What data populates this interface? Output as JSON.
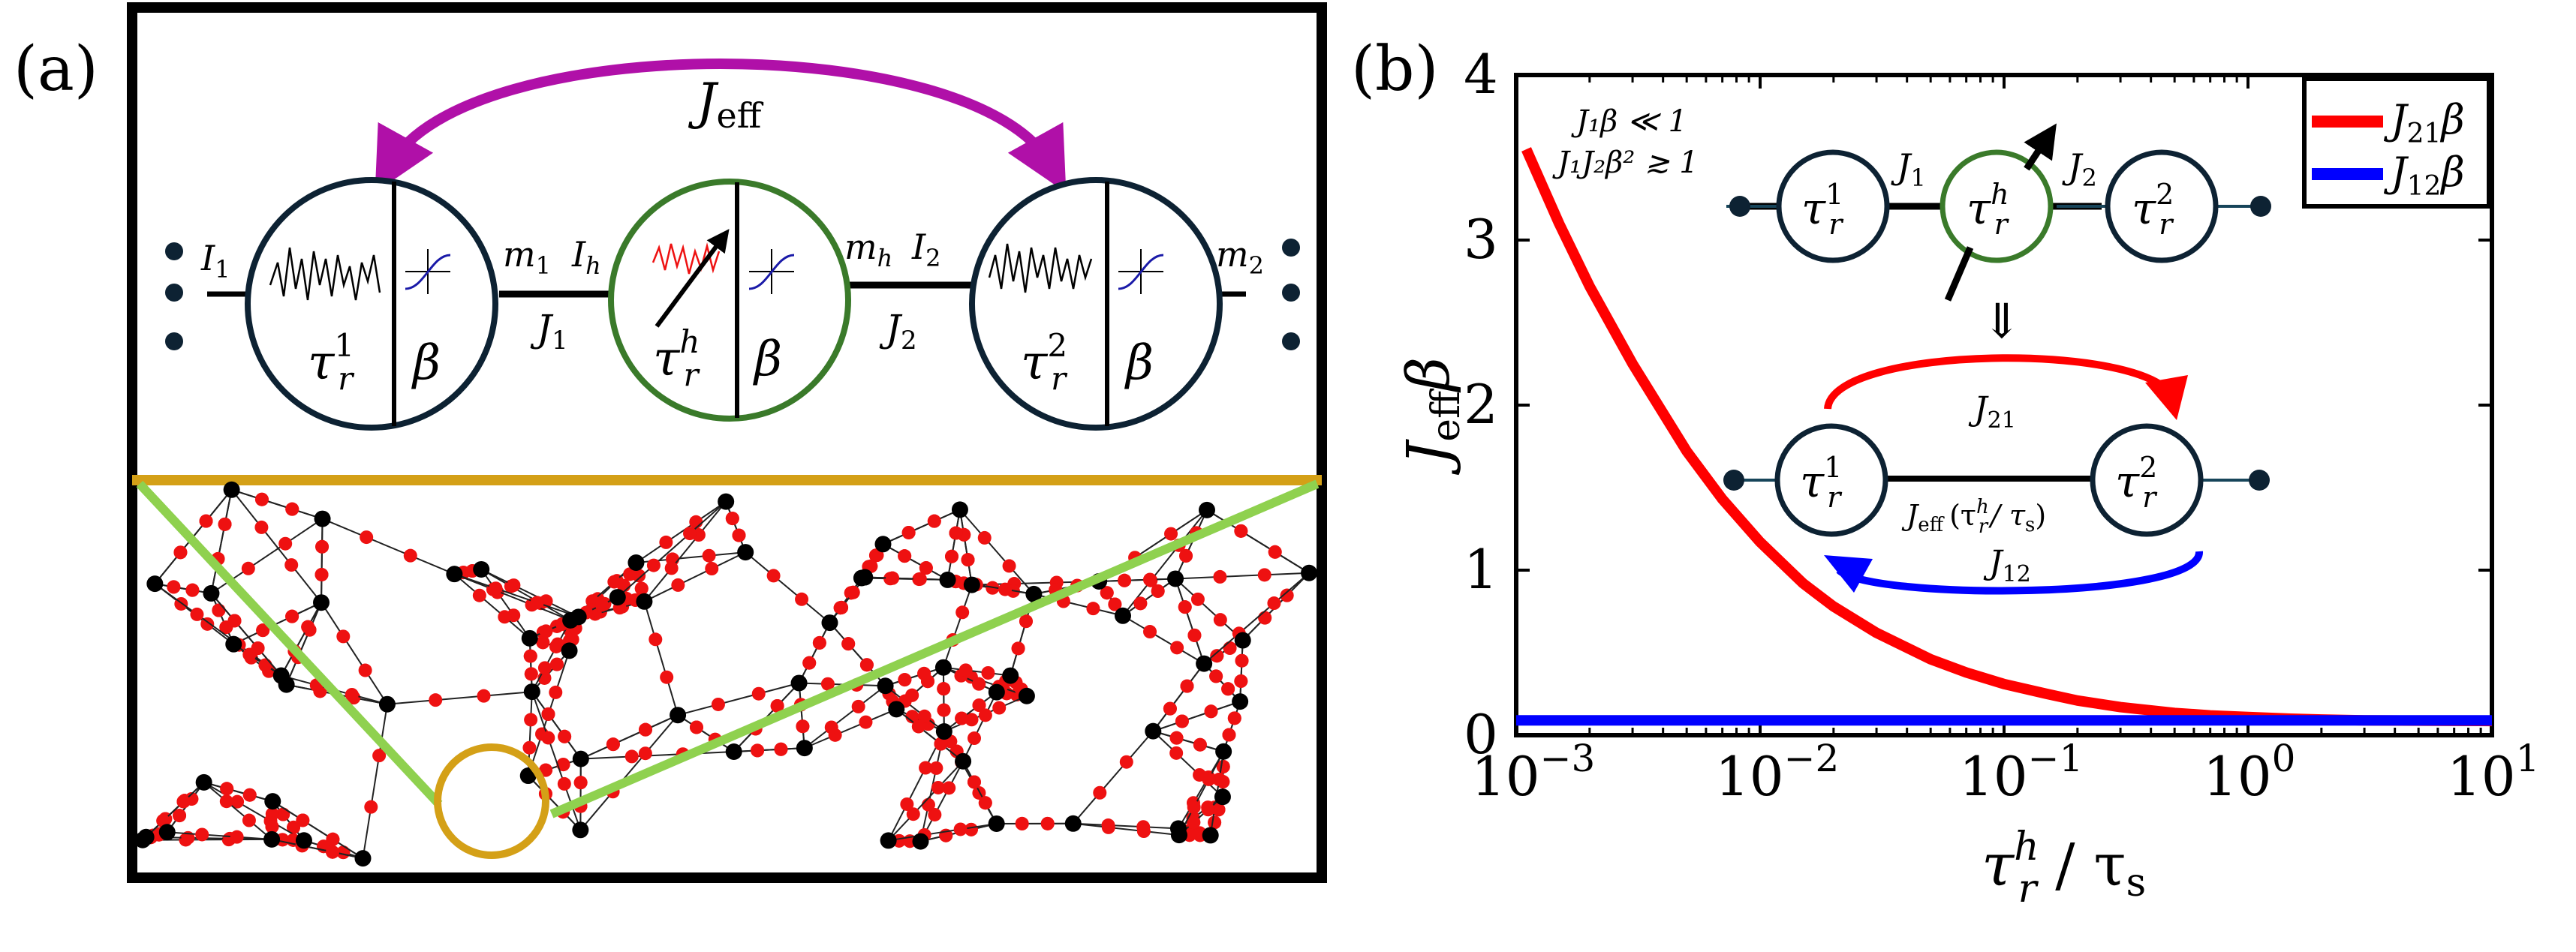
{
  "panel_a": {
    "label": "(a)",
    "coupling_arrow_label": "J",
    "coupling_arrow_sub": "eff",
    "left_spin": {
      "tau_sup": "1",
      "beta": "β",
      "in_label": "I",
      "in_sub": "1",
      "out_label": "m",
      "out_sub": "1"
    },
    "hidden_spin": {
      "tau_sup": "h",
      "beta": "β",
      "in_label": "I",
      "in_sub": "h",
      "out_label": "m",
      "out_sub": "h"
    },
    "right_spin": {
      "tau_sup": "2",
      "beta": "β",
      "in_label": "I",
      "in_sub": "2",
      "out_label": "m",
      "out_sub": "2"
    },
    "coupling_left": {
      "label": "J",
      "sub": "1"
    },
    "coupling_right": {
      "label": "J",
      "sub": "2"
    },
    "tau_symbol": "τ",
    "tau_sub": "r"
  },
  "panel_b": {
    "label": "(b)",
    "inset": {
      "condition_1": "J₁β ≪ 1",
      "condition_2": "J₁J₂β² ≳ 1",
      "top_j1": "J",
      "top_j1_sub": "1",
      "top_j2": "J",
      "top_j2_sub": "2",
      "implies": "⇓",
      "j21": "J",
      "j21_sub": "21",
      "j12": "J",
      "j12_sub": "12",
      "jeff_text": "J",
      "jeff_sub": "eff",
      "jeff_arg": "(τ",
      "jeff_arg_sup": "h",
      "jeff_arg_sub": "r",
      "jeff_arg_tail": "/ τ",
      "jeff_arg_tail_sub": "s",
      "jeff_arg_close": ")"
    }
  },
  "chart_data": {
    "type": "line",
    "xscale": "log",
    "xlim": [
      0.001,
      10
    ],
    "ylim": [
      0,
      4
    ],
    "xlabel": "τ_r^h / τ_s",
    "ylabel": "J_eff β",
    "xtick_base": "10",
    "xtick_exponents": [
      "−3",
      "−2",
      "−1",
      "0",
      "1"
    ],
    "xtick_values": [
      0.001,
      0.01,
      0.1,
      1,
      10
    ],
    "yticks": [
      "0",
      "1",
      "2",
      "3",
      "4"
    ],
    "ytick_values": [
      0,
      1,
      2,
      3,
      4
    ],
    "legend_position": "top-right",
    "series": [
      {
        "name": "J21β",
        "legend_main": "J",
        "legend_sub": "21",
        "legend_tail": "β",
        "color": "#ff0000",
        "x": [
          0.0011,
          0.0015,
          0.002,
          0.003,
          0.005,
          0.007,
          0.01,
          0.015,
          0.02,
          0.03,
          0.05,
          0.07,
          0.1,
          0.15,
          0.2,
          0.3,
          0.5,
          0.7,
          1.0,
          1.5,
          2,
          3,
          5,
          7,
          10
        ],
        "y": [
          3.55,
          3.1,
          2.72,
          2.25,
          1.72,
          1.43,
          1.17,
          0.92,
          0.78,
          0.62,
          0.46,
          0.38,
          0.31,
          0.25,
          0.21,
          0.17,
          0.135,
          0.12,
          0.11,
          0.1,
          0.095,
          0.09,
          0.088,
          0.087,
          0.086
        ]
      },
      {
        "name": "J12β",
        "legend_main": "J",
        "legend_sub": "12",
        "legend_tail": "β",
        "color": "#0000ff",
        "x": [
          0.001,
          10
        ],
        "y": [
          0.09,
          0.09
        ]
      }
    ]
  },
  "colors": {
    "frame": "#000000",
    "gold": "#d4a017",
    "green_line": "#8fd14f",
    "magenta": "#b010a8",
    "hidden_ring": "#3a7a2a",
    "node_ring": "#0d2233",
    "red_dot": "#ee1111",
    "blue_sigmoid": "#1a1aa8"
  }
}
